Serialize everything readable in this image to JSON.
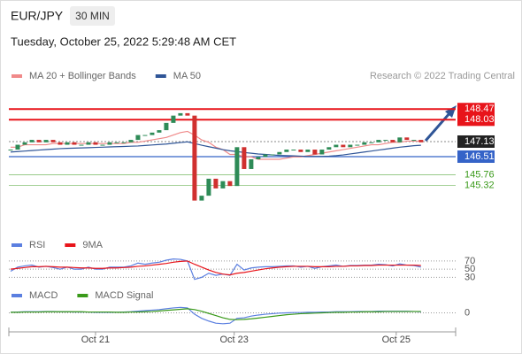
{
  "header": {
    "symbol": "EUR/JPY",
    "timeframe": "30 MIN",
    "date": "Tuesday, October 25, 2022 5:29:48 AM CET",
    "credit": "Research © 2022 Trading Central"
  },
  "chart_data": [
    {
      "type": "candlestick",
      "up_color": "#2e8b57",
      "down_color": "#d0302f",
      "xlim": [
        -0.25,
        62.9
      ],
      "ylim": [
        143.3,
        149.5
      ],
      "values": [
        146.8,
        147.0,
        147.1,
        147.2,
        147.1,
        147.2,
        147.1,
        147.0,
        147.1,
        147.0,
        147.0,
        147.1,
        147.0,
        147.0,
        147.1,
        147.1,
        147.1,
        147.2,
        147.4,
        147.4,
        147.5,
        147.6,
        147.9,
        148.2,
        148.3,
        148.2,
        144.7,
        144.9,
        145.6,
        145.2,
        145.5,
        145.3,
        146.9,
        146.0,
        146.4,
        146.5,
        146.6,
        146.6,
        146.7,
        146.8,
        146.8,
        146.7,
        146.8,
        146.6,
        146.8,
        146.9,
        147.0,
        146.9,
        147.0,
        147.0,
        147.1,
        147.1,
        147.2,
        147.2,
        147.1,
        147.3,
        147.2,
        147.2,
        147.1
      ],
      "series": [
        {
          "name": "MA 20 + Bollinger Bands",
          "color": "#f08a8a",
          "values": [
            146.9,
            146.9,
            147.0,
            147.0,
            147.0,
            147.0,
            147.05,
            147.05,
            147.05,
            147.05,
            147.05,
            147.05,
            147.05,
            147.05,
            147.05,
            147.05,
            147.05,
            147.1,
            147.1,
            147.15,
            147.2,
            147.25,
            147.3,
            147.4,
            147.5,
            147.55,
            147.4,
            147.2,
            147.1,
            146.9,
            146.8,
            146.6,
            146.6,
            146.5,
            146.5,
            146.4,
            146.4,
            146.4,
            146.4,
            146.45,
            146.5,
            146.5,
            146.55,
            146.6,
            146.65,
            146.7,
            146.75,
            146.8,
            146.85,
            146.9,
            146.95,
            147.0,
            147.0,
            147.05,
            147.1,
            147.1,
            147.15,
            147.15,
            147.15
          ]
        },
        {
          "name": "MA 50",
          "color": "#2f5597",
          "values": [
            146.7,
            146.72,
            146.74,
            146.76,
            146.78,
            146.8,
            146.82,
            146.84,
            146.85,
            146.86,
            146.87,
            146.88,
            146.89,
            146.9,
            146.91,
            146.92,
            146.93,
            146.94,
            146.95,
            146.97,
            146.99,
            147.01,
            147.03,
            147.06,
            147.09,
            147.12,
            147.05,
            146.98,
            146.92,
            146.86,
            146.8,
            146.75,
            146.72,
            146.68,
            146.65,
            146.62,
            146.6,
            146.58,
            146.56,
            146.55,
            146.54,
            146.53,
            146.52,
            146.52,
            146.52,
            146.53,
            146.55,
            146.58,
            146.62,
            146.66,
            146.7,
            146.74,
            146.78,
            146.82,
            146.86,
            146.9,
            146.93,
            146.96,
            146.98
          ]
        }
      ],
      "levels": [
        {
          "value": 148.47,
          "color": "#e8141a",
          "style": "box"
        },
        {
          "value": 148.03,
          "color": "#e8141a",
          "style": "box"
        },
        {
          "value": 147.13,
          "color": "#222222",
          "style": "current"
        },
        {
          "value": 146.51,
          "color": "#3563c8",
          "style": "box"
        },
        {
          "value": 145.76,
          "color": "#3a9a1a",
          "style": "text"
        },
        {
          "value": 145.32,
          "color": "#3a9a1a",
          "style": "text"
        }
      ]
    },
    {
      "type": "line",
      "xlim": [
        -0.25,
        62.9
      ],
      "ylim": [
        20,
        85
      ],
      "yticks": [
        70,
        50,
        30
      ],
      "series": [
        {
          "name": "RSI",
          "color": "#5b7fe0",
          "values": [
            45,
            55,
            58,
            60,
            55,
            57,
            54,
            50,
            55,
            50,
            50,
            55,
            50,
            50,
            55,
            55,
            55,
            58,
            65,
            62,
            65,
            67,
            72,
            75,
            74,
            70,
            25,
            30,
            40,
            35,
            38,
            35,
            62,
            48,
            53,
            55,
            56,
            56,
            57,
            58,
            58,
            55,
            57,
            52,
            56,
            58,
            60,
            57,
            59,
            59,
            60,
            60,
            62,
            61,
            58,
            63,
            60,
            59,
            55
          ]
        },
        {
          "name": "9MA",
          "color": "#e8141a",
          "values": [
            50,
            52,
            54,
            56,
            56,
            57,
            56,
            55,
            55,
            54,
            53,
            53,
            52,
            52,
            53,
            53,
            54,
            55,
            57,
            58,
            60,
            62,
            64,
            67,
            69,
            70,
            62,
            55,
            48,
            42,
            38,
            36,
            40,
            42,
            45,
            48,
            51,
            53,
            55,
            56,
            57,
            57,
            57,
            56,
            56,
            56,
            57,
            57,
            58,
            58,
            59,
            59,
            60,
            60,
            60,
            60,
            60,
            60,
            59
          ]
        }
      ]
    },
    {
      "type": "line",
      "xlim": [
        -0.25,
        62.9
      ],
      "ylim": [
        -0.6,
        0.6
      ],
      "yticks": [
        0
      ],
      "xticks": [
        {
          "value": 12,
          "label": "Oct 21"
        },
        {
          "value": 31.6,
          "label": "Oct 23"
        },
        {
          "value": 54.5,
          "label": "Oct 25"
        }
      ],
      "series": [
        {
          "name": "MACD",
          "color": "#5b7fe0",
          "values": [
            0.02,
            0.03,
            0.04,
            0.04,
            0.04,
            0.05,
            0.05,
            0.04,
            0.04,
            0.03,
            0.03,
            0.03,
            0.02,
            0.02,
            0.02,
            0.02,
            0.03,
            0.04,
            0.06,
            0.08,
            0.1,
            0.12,
            0.15,
            0.18,
            0.2,
            0.18,
            -0.05,
            -0.2,
            -0.3,
            -0.38,
            -0.4,
            -0.38,
            -0.2,
            -0.18,
            -0.12,
            -0.08,
            -0.05,
            -0.03,
            -0.01,
            0.0,
            0.01,
            0.01,
            0.02,
            0.02,
            0.03,
            0.03,
            0.04,
            0.04,
            0.04,
            0.05,
            0.05,
            0.05,
            0.06,
            0.06,
            0.06,
            0.06,
            0.06,
            0.05,
            0.04
          ]
        },
        {
          "name": "MACD Signal",
          "color": "#3a9a1a",
          "values": [
            0.02,
            0.02,
            0.03,
            0.03,
            0.03,
            0.04,
            0.04,
            0.04,
            0.04,
            0.04,
            0.04,
            0.03,
            0.03,
            0.03,
            0.03,
            0.02,
            0.02,
            0.03,
            0.03,
            0.04,
            0.05,
            0.07,
            0.09,
            0.11,
            0.13,
            0.15,
            0.12,
            0.06,
            -0.02,
            -0.1,
            -0.18,
            -0.24,
            -0.25,
            -0.24,
            -0.22,
            -0.19,
            -0.16,
            -0.13,
            -0.1,
            -0.07,
            -0.05,
            -0.03,
            -0.02,
            -0.01,
            0.0,
            0.01,
            0.02,
            0.02,
            0.03,
            0.03,
            0.04,
            0.04,
            0.04,
            0.05,
            0.05,
            0.05,
            0.05,
            0.05,
            0.05
          ]
        }
      ]
    }
  ]
}
